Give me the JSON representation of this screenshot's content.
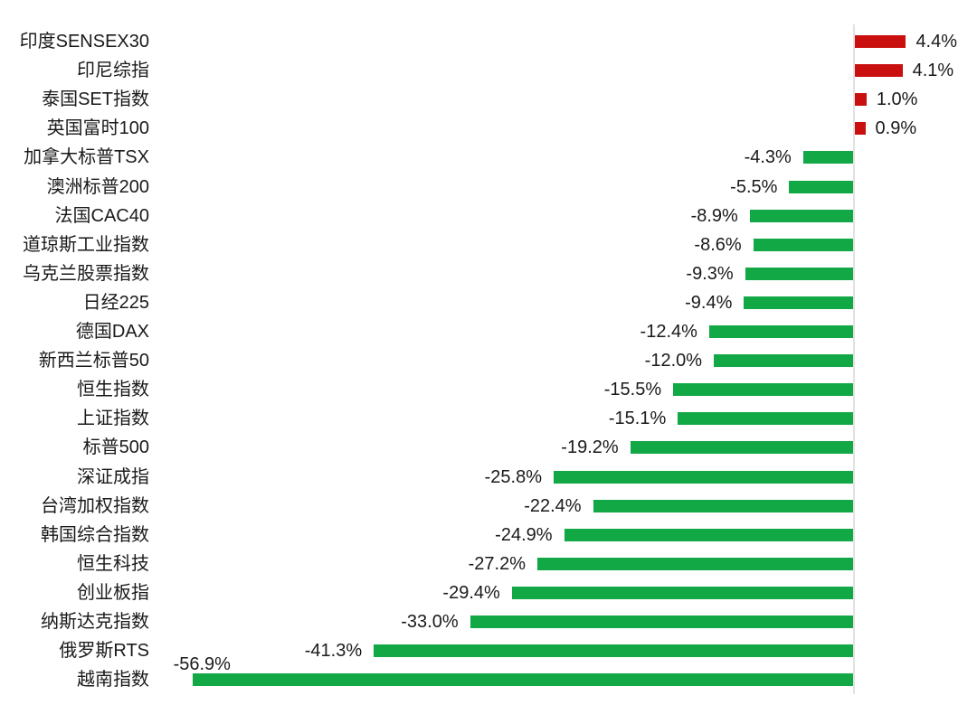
{
  "chart_data": {
    "type": "bar",
    "orientation": "horizontal",
    "title": "",
    "xlabel": "",
    "ylabel": "",
    "unit": "%",
    "xlim": [
      -60,
      8
    ],
    "grid": false,
    "legend": null,
    "value_label_position": "outside-end",
    "categories": [
      "印度SENSEX30",
      "印尼综指",
      "泰国SET指数",
      "英国富时100",
      "加拿大标普TSX",
      "澳洲标普200",
      "法国CAC40",
      "道琼斯工业指数",
      "乌克兰股票指数",
      "日经225",
      "德国DAX",
      "新西兰标普50",
      "恒生指数",
      "上证指数",
      "标普500",
      "深证成指",
      "台湾加权指数",
      "韩国综合指数",
      "恒生科技",
      "创业板指",
      "纳斯达克指数",
      "俄罗斯RTS",
      "越南指数"
    ],
    "values": [
      4.4,
      4.1,
      1.0,
      0.9,
      -4.3,
      -5.5,
      -8.9,
      -8.6,
      -9.3,
      -9.4,
      -12.4,
      -12.0,
      -15.5,
      -15.1,
      -19.2,
      -25.8,
      -22.4,
      -24.9,
      -27.2,
      -29.4,
      -33.0,
      -41.3,
      -56.9
    ],
    "value_labels": [
      "4.4%",
      "4.1%",
      "1.0%",
      "0.9%",
      "-4.3%",
      "-5.5%",
      "-8.9%",
      "-8.6%",
      "-9.3%",
      "-9.4%",
      "-12.4%",
      "-12.0%",
      "-15.5%",
      "-15.1%",
      "-19.2%",
      "-25.8%",
      "-22.4%",
      "-24.9%",
      "-27.2%",
      "-29.4%",
      "-33.0%",
      "-41.3%",
      "-56.9%"
    ],
    "colors": {
      "positive_bar": "#c9100f",
      "negative_bar": "#12a845",
      "text": "#1a1a1a",
      "axis_line": "#e2e2e2",
      "background": "#ffffff"
    }
  }
}
